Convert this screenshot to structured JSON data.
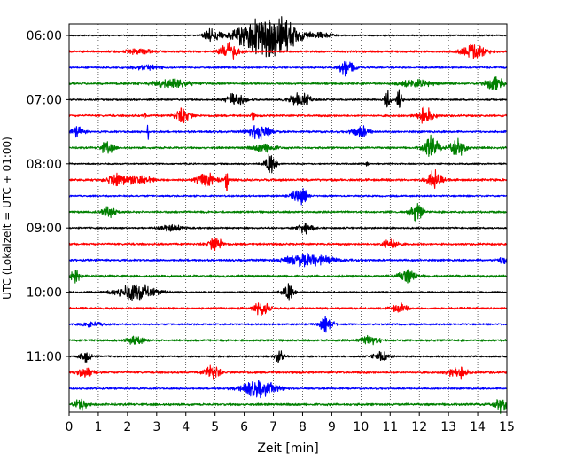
{
  "chart_data": {
    "type": "line",
    "subtype": "helicorder / seismogram drum plot",
    "xlabel": "Zeit  [min]",
    "ylabel": "UTC (Lokalzeit = UTC + 01:00)",
    "xlim": [
      0,
      15
    ],
    "x_ticks": [
      "0",
      "1",
      "2",
      "3",
      "4",
      "5",
      "6",
      "7",
      "8",
      "9",
      "10",
      "11",
      "12",
      "13",
      "14",
      "15"
    ],
    "y_tick_labels": [
      "06:00",
      "07:00",
      "08:00",
      "09:00",
      "10:00",
      "11:00"
    ],
    "line_minutes": 15,
    "grid": "vertical dotted lines at each minute",
    "trace_colors": [
      "#000000",
      "#ff0000",
      "#0000ff",
      "#008000"
    ],
    "traces": [
      {
        "start": "06:00",
        "color": "#000000",
        "amp": 0.05,
        "events": [
          [
            4.9,
            0.45,
            0.5
          ],
          [
            6.4,
            1.0,
            1.5
          ],
          [
            7.3,
            1.0,
            1.3
          ],
          [
            8.6,
            0.15,
            0.8
          ]
        ]
      },
      {
        "start": "06:15",
        "color": "#ff0000",
        "amp": 0.07,
        "events": [
          [
            5.5,
            0.6,
            0.6
          ],
          [
            13.9,
            0.5,
            0.8
          ],
          [
            2.4,
            0.15,
            1.0
          ]
        ]
      },
      {
        "start": "06:30",
        "color": "#0000ff",
        "amp": 0.06,
        "events": [
          [
            9.5,
            0.5,
            0.5
          ],
          [
            2.6,
            0.15,
            1.0
          ]
        ]
      },
      {
        "start": "06:45",
        "color": "#008000",
        "amp": 0.07,
        "events": [
          [
            14.6,
            0.5,
            0.6
          ],
          [
            11.9,
            0.25,
            1.0
          ],
          [
            3.5,
            0.25,
            1.2
          ]
        ]
      },
      {
        "start": "07:00",
        "color": "#000000",
        "amp": 0.06,
        "events": [
          [
            5.7,
            0.45,
            0.6
          ],
          [
            7.9,
            0.5,
            0.7
          ],
          [
            10.9,
            0.7,
            0.2
          ],
          [
            11.3,
            0.6,
            0.2
          ]
        ]
      },
      {
        "start": "07:15",
        "color": "#ff0000",
        "amp": 0.07,
        "events": [
          [
            3.9,
            0.5,
            0.5
          ],
          [
            12.2,
            0.5,
            0.6
          ],
          [
            2.6,
            0.55,
            0.05
          ],
          [
            6.3,
            0.3,
            0.1
          ]
        ]
      },
      {
        "start": "07:30",
        "color": "#0000ff",
        "amp": 0.07,
        "events": [
          [
            2.7,
            1.0,
            0.05
          ],
          [
            6.5,
            0.5,
            0.7
          ],
          [
            0.3,
            0.35,
            0.4
          ],
          [
            10.0,
            0.35,
            0.6
          ]
        ]
      },
      {
        "start": "07:45",
        "color": "#008000",
        "amp": 0.07,
        "events": [
          [
            12.4,
            0.8,
            0.5
          ],
          [
            13.3,
            0.6,
            0.5
          ],
          [
            1.3,
            0.45,
            0.4
          ],
          [
            6.7,
            0.25,
            0.8
          ]
        ]
      },
      {
        "start": "08:00",
        "color": "#000000",
        "amp": 0.05,
        "events": [
          [
            6.9,
            0.6,
            0.4
          ],
          [
            10.2,
            0.1,
            0.1
          ]
        ]
      },
      {
        "start": "08:15",
        "color": "#ff0000",
        "amp": 0.08,
        "events": [
          [
            1.6,
            0.4,
            0.6
          ],
          [
            4.7,
            0.45,
            0.6
          ],
          [
            5.4,
            0.9,
            0.1
          ],
          [
            12.5,
            0.6,
            0.5
          ],
          [
            2.4,
            0.3,
            0.8
          ]
        ]
      },
      {
        "start": "08:30",
        "color": "#0000ff",
        "amp": 0.06,
        "events": [
          [
            7.9,
            0.6,
            0.5
          ]
        ]
      },
      {
        "start": "08:45",
        "color": "#008000",
        "amp": 0.07,
        "events": [
          [
            11.9,
            0.6,
            0.4
          ],
          [
            1.4,
            0.35,
            0.5
          ]
        ]
      },
      {
        "start": "09:00",
        "color": "#000000",
        "amp": 0.06,
        "events": [
          [
            8.1,
            0.4,
            0.5
          ],
          [
            3.5,
            0.2,
            0.8
          ]
        ]
      },
      {
        "start": "09:15",
        "color": "#ff0000",
        "amp": 0.07,
        "events": [
          [
            5.0,
            0.45,
            0.5
          ],
          [
            11.0,
            0.45,
            0.5
          ]
        ]
      },
      {
        "start": "09:30",
        "color": "#0000ff",
        "amp": 0.07,
        "events": [
          [
            8.2,
            0.4,
            1.6
          ],
          [
            14.9,
            0.3,
            0.3
          ]
        ]
      },
      {
        "start": "09:45",
        "color": "#008000",
        "amp": 0.08,
        "events": [
          [
            0.2,
            0.45,
            0.3
          ],
          [
            11.6,
            0.45,
            0.6
          ]
        ]
      },
      {
        "start": "10:00",
        "color": "#000000",
        "amp": 0.06,
        "events": [
          [
            2.3,
            0.55,
            1.3
          ],
          [
            7.5,
            0.5,
            0.4
          ]
        ]
      },
      {
        "start": "10:15",
        "color": "#ff0000",
        "amp": 0.07,
        "events": [
          [
            6.6,
            0.45,
            0.5
          ],
          [
            11.3,
            0.3,
            0.5
          ]
        ]
      },
      {
        "start": "10:30",
        "color": "#0000ff",
        "amp": 0.06,
        "events": [
          [
            8.8,
            0.45,
            0.5
          ],
          [
            0.8,
            0.15,
            0.8
          ]
        ]
      },
      {
        "start": "10:45",
        "color": "#008000",
        "amp": 0.07,
        "events": [
          [
            2.3,
            0.4,
            0.5
          ],
          [
            10.3,
            0.25,
            0.7
          ]
        ]
      },
      {
        "start": "11:00",
        "color": "#000000",
        "amp": 0.06,
        "events": [
          [
            0.6,
            0.35,
            0.4
          ],
          [
            7.2,
            0.5,
            0.3
          ],
          [
            10.7,
            0.3,
            0.5
          ]
        ]
      },
      {
        "start": "11:15",
        "color": "#ff0000",
        "amp": 0.07,
        "events": [
          [
            4.9,
            0.5,
            0.5
          ],
          [
            13.3,
            0.45,
            0.6
          ],
          [
            0.5,
            0.3,
            0.6
          ]
        ]
      },
      {
        "start": "11:30",
        "color": "#0000ff",
        "amp": 0.06,
        "events": [
          [
            6.5,
            0.55,
            1.2
          ]
        ]
      },
      {
        "start": "11:45",
        "color": "#008000",
        "amp": 0.08,
        "events": [
          [
            0.4,
            0.35,
            0.5
          ],
          [
            14.8,
            0.5,
            0.4
          ]
        ]
      }
    ]
  }
}
